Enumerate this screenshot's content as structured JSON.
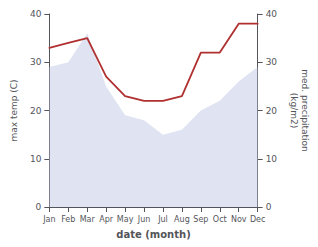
{
  "chart_data": {
    "type": "line",
    "categories": [
      "Jan",
      "Feb",
      "Mar",
      "Apr",
      "May",
      "Jun",
      "Jul",
      "Aug",
      "Sep",
      "Oct",
      "Nov",
      "Dec"
    ],
    "xlabel": "date (month)",
    "ylabel": "max temp (C)",
    "y2label": "med. precipitation\n(kg/m2)",
    "ylim": [
      0,
      40
    ],
    "yticks": [
      0,
      10,
      20,
      30,
      40
    ],
    "y2lim": [
      0,
      40
    ],
    "y2ticks": [
      0,
      10,
      20,
      30,
      40
    ],
    "grid": false,
    "series": [
      {
        "type": "area",
        "color": "#c5cce8",
        "values": [
          29,
          30,
          36,
          25,
          19,
          18,
          15,
          16,
          20,
          22,
          26,
          29
        ]
      },
      {
        "type": "line",
        "color": "#b03030",
        "axis": "y2",
        "values": [
          33,
          34,
          35,
          27,
          23,
          22,
          22,
          23,
          32,
          32,
          38,
          38
        ]
      }
    ]
  }
}
